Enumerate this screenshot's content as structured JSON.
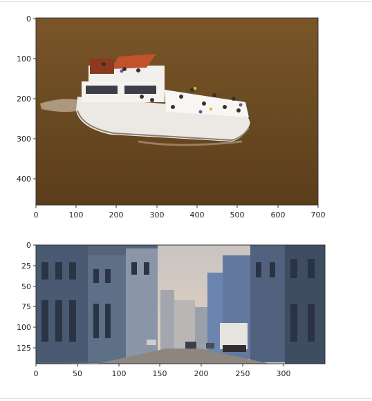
{
  "figures": [
    {
      "x_ticks": [
        "0",
        "100",
        "200",
        "300",
        "400",
        "500",
        "600",
        "700"
      ],
      "y_ticks": [
        "0",
        "100",
        "200",
        "300",
        "400"
      ]
    },
    {
      "x_ticks": [
        "0",
        "50",
        "100",
        "150",
        "200",
        "250",
        "300"
      ],
      "y_ticks": [
        "0",
        "25",
        "50",
        "75",
        "100",
        "125"
      ]
    }
  ],
  "colors": {
    "water": "#6b4a22",
    "boat_hull": "#e8e4df",
    "sky": "#d7cfc6",
    "building": "#5a6e8a"
  }
}
